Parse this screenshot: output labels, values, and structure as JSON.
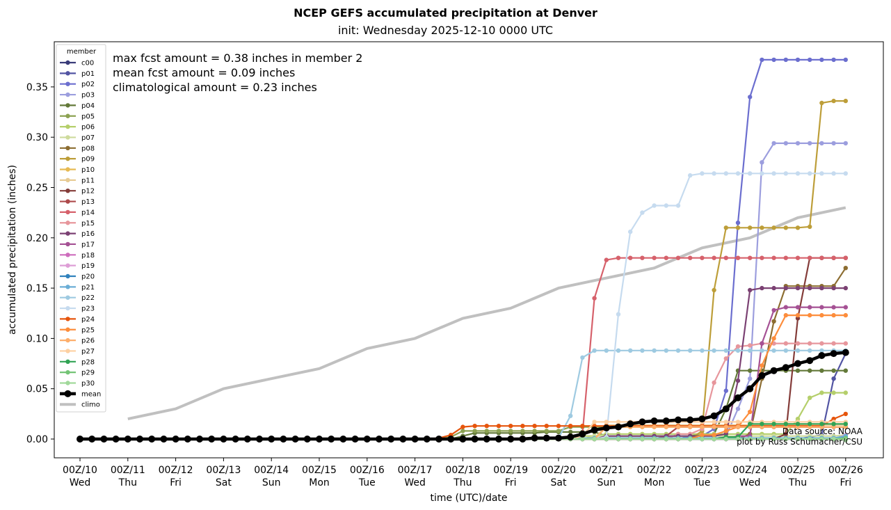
{
  "chart_data": {
    "type": "line",
    "title": "NCEP GEFS accumulated precipitation at Denver",
    "subtitle": "init: Wednesday 2025-12-10 0000 UTC",
    "xlabel": "time (UTC)/date",
    "ylabel": "accumulated precipitation (inches)",
    "ylim": [
      -0.018,
      0.394
    ],
    "xlim_days": [
      -0.5,
      16.8
    ],
    "grid": false,
    "x_step_hours": 6,
    "x_ticks": [
      {
        "day": 0,
        "label1": "00Z/10",
        "label2": "Wed"
      },
      {
        "day": 1,
        "label1": "00Z/11",
        "label2": "Thu"
      },
      {
        "day": 2,
        "label1": "00Z/12",
        "label2": "Fri"
      },
      {
        "day": 3,
        "label1": "00Z/13",
        "label2": "Sat"
      },
      {
        "day": 4,
        "label1": "00Z/14",
        "label2": "Sun"
      },
      {
        "day": 5,
        "label1": "00Z/15",
        "label2": "Mon"
      },
      {
        "day": 6,
        "label1": "00Z/16",
        "label2": "Tue"
      },
      {
        "day": 7,
        "label1": "00Z/17",
        "label2": "Wed"
      },
      {
        "day": 8,
        "label1": "00Z/18",
        "label2": "Thu"
      },
      {
        "day": 9,
        "label1": "00Z/19",
        "label2": "Fri"
      },
      {
        "day": 10,
        "label1": "00Z/20",
        "label2": "Sat"
      },
      {
        "day": 11,
        "label1": "00Z/21",
        "label2": "Sun"
      },
      {
        "day": 12,
        "label1": "00Z/22",
        "label2": "Mon"
      },
      {
        "day": 13,
        "label1": "00Z/23",
        "label2": "Tue"
      },
      {
        "day": 14,
        "label1": "00Z/24",
        "label2": "Wed"
      },
      {
        "day": 15,
        "label1": "00Z/25",
        "label2": "Thu"
      },
      {
        "day": 16,
        "label1": "00Z/26",
        "label2": "Fri"
      }
    ],
    "y_ticks": [
      "0.00",
      "0.05",
      "0.10",
      "0.15",
      "0.20",
      "0.25",
      "0.30",
      "0.35"
    ],
    "y_tick_values": [
      0,
      0.05,
      0.1,
      0.15,
      0.2,
      0.25,
      0.3,
      0.35
    ],
    "legend": {
      "title": "member",
      "placement": "upper-left"
    },
    "annotations": [
      "max fcst amount = 0.38 inches in member 2",
      "mean fcst amount = 0.09 inches",
      "climatological amount = 0.23 inches"
    ],
    "credits": [
      "Data source: NOAA",
      "plot by Russ Schumacher/CSU"
    ],
    "series_note": "members given as sparse change points [index, value] on a 6-hourly grid of 65 points (index 0 = 00Z/10, 64 = 00Z/26); values hold until next change point",
    "series": [
      {
        "name": "c00",
        "color": "#393b79",
        "points": [
          [
            0,
            0
          ],
          [
            64,
            0.002
          ]
        ]
      },
      {
        "name": "p01",
        "color": "#5254a3",
        "points": [
          [
            0,
            0
          ],
          [
            61,
            0.002
          ],
          [
            62,
            0.004
          ],
          [
            63,
            0.06
          ],
          [
            64,
            0.085
          ]
        ]
      },
      {
        "name": "p02",
        "color": "#6b6ecf",
        "points": [
          [
            0,
            0
          ],
          [
            51,
            0.003
          ],
          [
            53,
            0.01
          ],
          [
            54,
            0.048
          ],
          [
            55,
            0.215
          ],
          [
            56,
            0.34
          ],
          [
            57,
            0.377
          ],
          [
            64,
            0.377
          ]
        ]
      },
      {
        "name": "p03",
        "color": "#9c9ede",
        "points": [
          [
            0,
            0
          ],
          [
            54,
            0.003
          ],
          [
            55,
            0.03
          ],
          [
            56,
            0.06
          ],
          [
            57,
            0.275
          ],
          [
            58,
            0.294
          ],
          [
            64,
            0.294
          ]
        ]
      },
      {
        "name": "p04",
        "color": "#637939",
        "points": [
          [
            0,
            0
          ],
          [
            32,
            0.003
          ],
          [
            33,
            0.006
          ],
          [
            39,
            0.007
          ],
          [
            40,
            0.007
          ],
          [
            44,
            0.003
          ],
          [
            52,
            0.005
          ],
          [
            54,
            0.03
          ],
          [
            55,
            0.068
          ],
          [
            64,
            0.068
          ]
        ]
      },
      {
        "name": "p05",
        "color": "#8ca252",
        "points": [
          [
            0,
            0
          ],
          [
            31,
            0.002
          ],
          [
            32,
            0.008
          ],
          [
            40,
            0.008
          ],
          [
            41,
            0.012
          ],
          [
            48,
            0.012
          ],
          [
            64,
            0.012
          ]
        ]
      },
      {
        "name": "p06",
        "color": "#b5cf6b",
        "points": [
          [
            0,
            0
          ],
          [
            42,
            0.003
          ],
          [
            44,
            0.005
          ],
          [
            59,
            0.005
          ],
          [
            60,
            0.02
          ],
          [
            61,
            0.041
          ],
          [
            62,
            0.046
          ],
          [
            64,
            0.046
          ]
        ]
      },
      {
        "name": "p07",
        "color": "#cedb9c",
        "points": [
          [
            0,
            0
          ],
          [
            43,
            0.003
          ],
          [
            64,
            0.004
          ]
        ]
      },
      {
        "name": "p08",
        "color": "#8c6d31",
        "points": [
          [
            0,
            0
          ],
          [
            56,
            0.005
          ],
          [
            57,
            0.06
          ],
          [
            58,
            0.117
          ],
          [
            59,
            0.152
          ],
          [
            63,
            0.152
          ],
          [
            64,
            0.17
          ]
        ]
      },
      {
        "name": "p09",
        "color": "#bd9e39",
        "points": [
          [
            0,
            0
          ],
          [
            52,
            0.008
          ],
          [
            53,
            0.148
          ],
          [
            54,
            0.21
          ],
          [
            61,
            0.211
          ],
          [
            62,
            0.334
          ],
          [
            63,
            0.336
          ],
          [
            64,
            0.336
          ]
        ]
      },
      {
        "name": "p10",
        "color": "#e7ba52",
        "points": [
          [
            0,
            0
          ],
          [
            44,
            0.012
          ],
          [
            64,
            0.012
          ]
        ]
      },
      {
        "name": "p11",
        "color": "#e7cb94",
        "points": [
          [
            0,
            0
          ],
          [
            44,
            0.014
          ],
          [
            64,
            0.014
          ]
        ]
      },
      {
        "name": "p12",
        "color": "#843c39",
        "points": [
          [
            0,
            0
          ],
          [
            59,
            0.005
          ],
          [
            60,
            0.12
          ],
          [
            61,
            0.18
          ],
          [
            64,
            0.18
          ]
        ]
      },
      {
        "name": "p13",
        "color": "#ad494a",
        "points": [
          [
            0,
            0
          ],
          [
            49,
            0.003
          ],
          [
            50,
            0.012
          ],
          [
            64,
            0.012
          ]
        ]
      },
      {
        "name": "p14",
        "color": "#d6616b",
        "points": [
          [
            0,
            0
          ],
          [
            40,
            0.002
          ],
          [
            42,
            0.005
          ],
          [
            43,
            0.14
          ],
          [
            44,
            0.178
          ],
          [
            45,
            0.18
          ],
          [
            64,
            0.18
          ]
        ]
      },
      {
        "name": "p15",
        "color": "#e7969c",
        "points": [
          [
            0,
            0
          ],
          [
            50,
            0.005
          ],
          [
            52,
            0.01
          ],
          [
            53,
            0.056
          ],
          [
            54,
            0.08
          ],
          [
            55,
            0.092
          ],
          [
            56,
            0.093
          ],
          [
            57,
            0.095
          ],
          [
            64,
            0.095
          ]
        ]
      },
      {
        "name": "p16",
        "color": "#7b4173",
        "points": [
          [
            0,
            0
          ],
          [
            44,
            0.003
          ],
          [
            54,
            0.005
          ],
          [
            55,
            0.058
          ],
          [
            56,
            0.148
          ],
          [
            57,
            0.15
          ],
          [
            64,
            0.15
          ]
        ]
      },
      {
        "name": "p17",
        "color": "#a55194",
        "points": [
          [
            0,
            0
          ],
          [
            55,
            0.003
          ],
          [
            57,
            0.095
          ],
          [
            58,
            0.128
          ],
          [
            59,
            0.131
          ],
          [
            64,
            0.131
          ]
        ]
      },
      {
        "name": "p18",
        "color": "#ce6dbd",
        "points": [
          [
            0,
            0
          ],
          [
            64,
            0.003
          ]
        ]
      },
      {
        "name": "p19",
        "color": "#de9ed6",
        "points": [
          [
            0,
            0
          ],
          [
            64,
            0.004
          ]
        ]
      },
      {
        "name": "p20",
        "color": "#3182bd",
        "points": [
          [
            0,
            0
          ],
          [
            40,
            0.001
          ],
          [
            64,
            0.002
          ]
        ]
      },
      {
        "name": "p21",
        "color": "#6baed6",
        "points": [
          [
            0,
            0
          ],
          [
            40,
            0.001
          ],
          [
            64,
            0.003
          ]
        ]
      },
      {
        "name": "p22",
        "color": "#9ecae1",
        "points": [
          [
            0,
            0
          ],
          [
            40,
            0.001
          ],
          [
            41,
            0.023
          ],
          [
            42,
            0.081
          ],
          [
            43,
            0.088
          ],
          [
            64,
            0.088
          ]
        ]
      },
      {
        "name": "p23",
        "color": "#c6dbef",
        "points": [
          [
            0,
            0
          ],
          [
            44,
            0.002
          ],
          [
            45,
            0.124
          ],
          [
            46,
            0.206
          ],
          [
            47,
            0.225
          ],
          [
            48,
            0.232
          ],
          [
            50,
            0.232
          ],
          [
            51,
            0.262
          ],
          [
            52,
            0.264
          ],
          [
            64,
            0.264
          ]
        ]
      },
      {
        "name": "p24",
        "color": "#e6550d",
        "points": [
          [
            0,
            0
          ],
          [
            30,
            0.001
          ],
          [
            31,
            0.004
          ],
          [
            32,
            0.012
          ],
          [
            33,
            0.013
          ],
          [
            62,
            0.013
          ],
          [
            63,
            0.02
          ],
          [
            64,
            0.025
          ]
        ]
      },
      {
        "name": "p25",
        "color": "#fd8d3c",
        "points": [
          [
            0,
            0
          ],
          [
            52,
            0.004
          ],
          [
            54,
            0.008
          ],
          [
            55,
            0.012
          ],
          [
            56,
            0.027
          ],
          [
            57,
            0.073
          ],
          [
            58,
            0.1
          ],
          [
            59,
            0.123
          ],
          [
            64,
            0.123
          ]
        ]
      },
      {
        "name": "p26",
        "color": "#fdae6b",
        "points": [
          [
            0,
            0
          ],
          [
            44,
            0.012
          ],
          [
            64,
            0.012
          ]
        ]
      },
      {
        "name": "p27",
        "color": "#fdd0a2",
        "points": [
          [
            0,
            0
          ],
          [
            42,
            0.003
          ],
          [
            43,
            0.017
          ],
          [
            52,
            0.017
          ],
          [
            64,
            0.017
          ]
        ]
      },
      {
        "name": "p28",
        "color": "#31a354",
        "points": [
          [
            0,
            0
          ],
          [
            54,
            0.002
          ],
          [
            56,
            0.015
          ],
          [
            64,
            0.015
          ]
        ]
      },
      {
        "name": "p29",
        "color": "#74c476",
        "points": [
          [
            0,
            0
          ],
          [
            64,
            0.001
          ]
        ]
      },
      {
        "name": "p30",
        "color": "#a1d99b",
        "points": [
          [
            0,
            0
          ],
          [
            64,
            -0.001
          ]
        ]
      },
      {
        "name": "mean",
        "color": "#000000",
        "points": [
          [
            0,
            0
          ],
          [
            38,
            0.001
          ],
          [
            40,
            0.001
          ],
          [
            41,
            0.002
          ],
          [
            42,
            0.005
          ],
          [
            43,
            0.009
          ],
          [
            44,
            0.011
          ],
          [
            45,
            0.012
          ],
          [
            46,
            0.015
          ],
          [
            47,
            0.017
          ],
          [
            48,
            0.018
          ],
          [
            49,
            0.018
          ],
          [
            50,
            0.019
          ],
          [
            51,
            0.019
          ],
          [
            52,
            0.02
          ],
          [
            53,
            0.023
          ],
          [
            54,
            0.03
          ],
          [
            55,
            0.041
          ],
          [
            56,
            0.05
          ],
          [
            57,
            0.063
          ],
          [
            58,
            0.068
          ],
          [
            59,
            0.071
          ],
          [
            60,
            0.075
          ],
          [
            61,
            0.078
          ],
          [
            62,
            0.083
          ],
          [
            63,
            0.085
          ],
          [
            64,
            0.086
          ]
        ]
      },
      {
        "name": "climo",
        "color": "#c0c0c0",
        "points": [
          [
            4,
            0.02
          ],
          [
            8,
            0.03
          ],
          [
            12,
            0.05
          ],
          [
            16,
            0.06
          ],
          [
            20,
            0.07
          ],
          [
            24,
            0.09
          ],
          [
            28,
            0.1
          ],
          [
            32,
            0.12
          ],
          [
            36,
            0.13
          ],
          [
            40,
            0.15
          ],
          [
            44,
            0.16
          ],
          [
            48,
            0.17
          ],
          [
            52,
            0.19
          ],
          [
            56,
            0.2
          ],
          [
            60,
            0.22
          ],
          [
            64,
            0.23
          ]
        ]
      }
    ]
  }
}
